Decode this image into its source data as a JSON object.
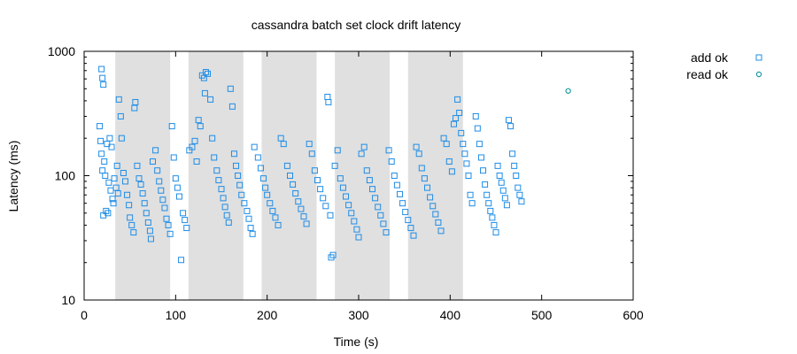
{
  "chart_data": {
    "type": "scatter",
    "title": "cassandra batch set clock drift latency",
    "xlabel": "Time (s)",
    "ylabel": "Latency (ms)",
    "xlim": [
      0,
      600
    ],
    "ylim": [
      10,
      1000
    ],
    "yscale": "log",
    "xticks": [
      0,
      100,
      200,
      300,
      400,
      500,
      600
    ],
    "yticks": [
      10,
      100,
      1000
    ],
    "legend_position": "top-right, outside plot",
    "grid": false,
    "shaded_intervals": [
      [
        34,
        94
      ],
      [
        114,
        174
      ],
      [
        194,
        254
      ],
      [
        274,
        334
      ],
      [
        354,
        414
      ]
    ],
    "shade_color": "#e0e0e0",
    "series": [
      {
        "name": "add ok",
        "marker": "square",
        "color": "#1f8de6",
        "points": [
          [
            17,
            250
          ],
          [
            19,
            720
          ],
          [
            20,
            610
          ],
          [
            21,
            540
          ],
          [
            18,
            190
          ],
          [
            19,
            150
          ],
          [
            22,
            130
          ],
          [
            20,
            110
          ],
          [
            23,
            100
          ],
          [
            21,
            48
          ],
          [
            24,
            52
          ],
          [
            26,
            50
          ],
          [
            25,
            180
          ],
          [
            28,
            200
          ],
          [
            30,
            170
          ],
          [
            27,
            88
          ],
          [
            29,
            76
          ],
          [
            31,
            65
          ],
          [
            32,
            60
          ],
          [
            33,
            95
          ],
          [
            35,
            80
          ],
          [
            36,
            120
          ],
          [
            37,
            72
          ],
          [
            38,
            410
          ],
          [
            40,
            300
          ],
          [
            41,
            200
          ],
          [
            43,
            105
          ],
          [
            45,
            90
          ],
          [
            47,
            70
          ],
          [
            49,
            58
          ],
          [
            50,
            46
          ],
          [
            52,
            40
          ],
          [
            54,
            35
          ],
          [
            55,
            350
          ],
          [
            56,
            390
          ],
          [
            58,
            120
          ],
          [
            60,
            95
          ],
          [
            62,
            85
          ],
          [
            64,
            72
          ],
          [
            66,
            60
          ],
          [
            68,
            50
          ],
          [
            70,
            42
          ],
          [
            72,
            36
          ],
          [
            73,
            31
          ],
          [
            75,
            130
          ],
          [
            78,
            160
          ],
          [
            80,
            110
          ],
          [
            82,
            90
          ],
          [
            84,
            76
          ],
          [
            86,
            64
          ],
          [
            88,
            55
          ],
          [
            90,
            45
          ],
          [
            92,
            40
          ],
          [
            94,
            34
          ],
          [
            96,
            250
          ],
          [
            98,
            140
          ],
          [
            100,
            95
          ],
          [
            102,
            80
          ],
          [
            104,
            68
          ],
          [
            106,
            21
          ],
          [
            108,
            50
          ],
          [
            110,
            44
          ],
          [
            112,
            38
          ],
          [
            115,
            160
          ],
          [
            118,
            170
          ],
          [
            121,
            190
          ],
          [
            123,
            130
          ],
          [
            125,
            280
          ],
          [
            127,
            250
          ],
          [
            129,
            640
          ],
          [
            131,
            610
          ],
          [
            133,
            680
          ],
          [
            135,
            660
          ],
          [
            132,
            460
          ],
          [
            138,
            410
          ],
          [
            140,
            200
          ],
          [
            142,
            140
          ],
          [
            145,
            110
          ],
          [
            147,
            92
          ],
          [
            150,
            78
          ],
          [
            152,
            66
          ],
          [
            154,
            56
          ],
          [
            156,
            48
          ],
          [
            158,
            42
          ],
          [
            160,
            500
          ],
          [
            162,
            360
          ],
          [
            164,
            150
          ],
          [
            166,
            120
          ],
          [
            168,
            100
          ],
          [
            170,
            84
          ],
          [
            172,
            70
          ],
          [
            175,
            60
          ],
          [
            178,
            52
          ],
          [
            180,
            45
          ],
          [
            182,
            38
          ],
          [
            184,
            34
          ],
          [
            186,
            170
          ],
          [
            190,
            140
          ],
          [
            193,
            115
          ],
          [
            196,
            95
          ],
          [
            198,
            80
          ],
          [
            200,
            70
          ],
          [
            203,
            60
          ],
          [
            206,
            52
          ],
          [
            209,
            46
          ],
          [
            212,
            40
          ],
          [
            215,
            200
          ],
          [
            218,
            180
          ],
          [
            222,
            120
          ],
          [
            225,
            100
          ],
          [
            228,
            85
          ],
          [
            231,
            72
          ],
          [
            234,
            62
          ],
          [
            237,
            54
          ],
          [
            240,
            47
          ],
          [
            243,
            41
          ],
          [
            246,
            180
          ],
          [
            249,
            150
          ],
          [
            252,
            110
          ],
          [
            255,
            92
          ],
          [
            258,
            78
          ],
          [
            261,
            66
          ],
          [
            264,
            57
          ],
          [
            266,
            430
          ],
          [
            267,
            390
          ],
          [
            269,
            48
          ],
          [
            270,
            22
          ],
          [
            272,
            23
          ],
          [
            274,
            120
          ],
          [
            277,
            160
          ],
          [
            280,
            95
          ],
          [
            283,
            80
          ],
          [
            286,
            68
          ],
          [
            289,
            58
          ],
          [
            292,
            50
          ],
          [
            295,
            43
          ],
          [
            298,
            37
          ],
          [
            300,
            32
          ],
          [
            303,
            150
          ],
          [
            306,
            170
          ],
          [
            309,
            110
          ],
          [
            312,
            92
          ],
          [
            315,
            78
          ],
          [
            318,
            66
          ],
          [
            321,
            56
          ],
          [
            324,
            48
          ],
          [
            327,
            41
          ],
          [
            330,
            35
          ],
          [
            333,
            160
          ],
          [
            336,
            130
          ],
          [
            339,
            100
          ],
          [
            342,
            84
          ],
          [
            345,
            71
          ],
          [
            348,
            60
          ],
          [
            351,
            51
          ],
          [
            354,
            44
          ],
          [
            357,
            38
          ],
          [
            360,
            33
          ],
          [
            363,
            170
          ],
          [
            366,
            150
          ],
          [
            369,
            115
          ],
          [
            372,
            95
          ],
          [
            375,
            80
          ],
          [
            378,
            67
          ],
          [
            381,
            57
          ],
          [
            384,
            49
          ],
          [
            387,
            42
          ],
          [
            390,
            36
          ],
          [
            393,
            200
          ],
          [
            396,
            180
          ],
          [
            399,
            130
          ],
          [
            402,
            108
          ],
          [
            404,
            260
          ],
          [
            406,
            290
          ],
          [
            408,
            410
          ],
          [
            410,
            320
          ],
          [
            412,
            220
          ],
          [
            414,
            180
          ],
          [
            416,
            150
          ],
          [
            418,
            125
          ],
          [
            420,
            100
          ],
          [
            422,
            70
          ],
          [
            424,
            60
          ],
          [
            428,
            300
          ],
          [
            430,
            240
          ],
          [
            432,
            180
          ],
          [
            434,
            140
          ],
          [
            436,
            110
          ],
          [
            438,
            85
          ],
          [
            440,
            70
          ],
          [
            442,
            60
          ],
          [
            444,
            52
          ],
          [
            446,
            46
          ],
          [
            448,
            40
          ],
          [
            450,
            35
          ],
          [
            452,
            120
          ],
          [
            454,
            100
          ],
          [
            456,
            88
          ],
          [
            458,
            76
          ],
          [
            460,
            66
          ],
          [
            462,
            58
          ],
          [
            464,
            280
          ],
          [
            466,
            250
          ],
          [
            468,
            150
          ],
          [
            470,
            120
          ],
          [
            472,
            100
          ],
          [
            474,
            80
          ],
          [
            476,
            70
          ],
          [
            478,
            62
          ]
        ]
      },
      {
        "name": "read ok",
        "marker": "circle",
        "color": "#1a9aa0",
        "points": [
          [
            529,
            480
          ]
        ]
      }
    ]
  }
}
